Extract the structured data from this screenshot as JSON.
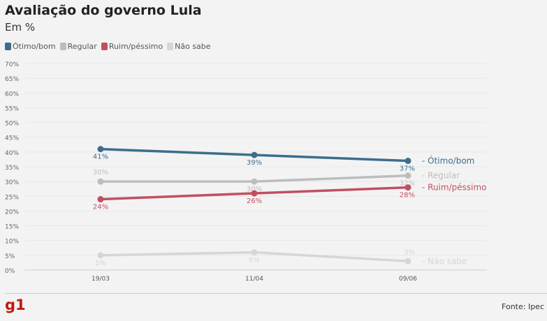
{
  "chart_data": {
    "type": "line",
    "title": "Avaliação do governo Lula",
    "subtitle": "Em %",
    "categories": [
      "19/03",
      "11/04",
      "09/06"
    ],
    "yticks": [
      "0%",
      "5%",
      "10%",
      "15%",
      "20%",
      "25%",
      "30%",
      "35%",
      "40%",
      "45%",
      "50%",
      "55%",
      "60%",
      "65%",
      "70%"
    ],
    "ylim": [
      0,
      70
    ],
    "grid": true,
    "legend_position": "top-left",
    "series": [
      {
        "name": "Ótimo/bom",
        "values": [
          41,
          39,
          37
        ],
        "labels": [
          "41%",
          "39%",
          "37%"
        ],
        "color": "#3c6e8c"
      },
      {
        "name": "Regular",
        "values": [
          30,
          30,
          32
        ],
        "labels": [
          "30%",
          "30%",
          "32%"
        ],
        "color": "#bdbdbd"
      },
      {
        "name": "Ruim/péssimo",
        "values": [
          24,
          26,
          28
        ],
        "labels": [
          "24%",
          "26%",
          "28%"
        ],
        "color": "#c05060"
      },
      {
        "name": "Não sabe",
        "values": [
          5,
          6,
          3
        ],
        "labels": [
          "5%",
          "6%",
          "3%"
        ],
        "color": "#d6d6d6"
      }
    ]
  },
  "footer": {
    "logo": "g1",
    "source": "Fonte: Ipec"
  }
}
